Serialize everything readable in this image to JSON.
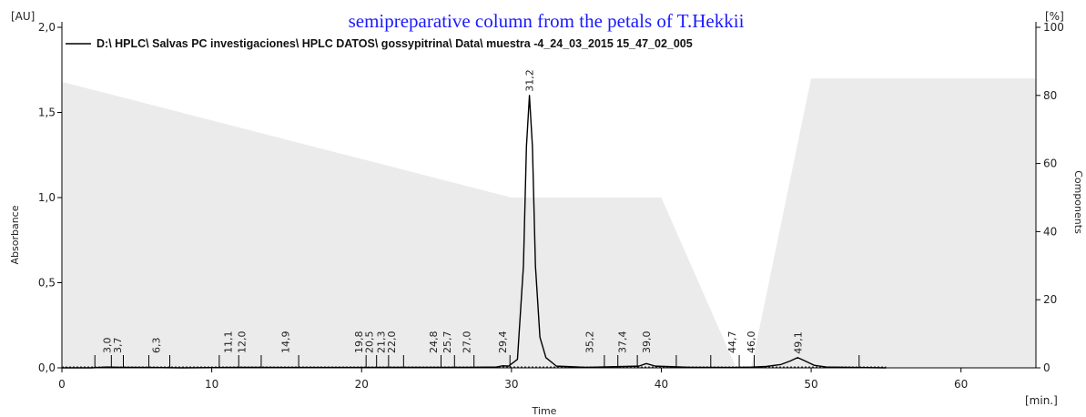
{
  "caption": "semipreparative column from the petals of T.Hekkii",
  "chart_data": {
    "type": "line",
    "title": "",
    "xlabel": "Time",
    "ylabel": "Absorbance",
    "y2label": "Components",
    "x_unit": "[min.]",
    "y_unit": "[AU]",
    "y2_unit": "[%]",
    "xlim": [
      0,
      65
    ],
    "ylim": [
      0,
      2.0
    ],
    "y2lim": [
      0,
      100
    ],
    "x_ticks": [
      0,
      10,
      20,
      30,
      40,
      50,
      60
    ],
    "x_tick_labels": [
      "0",
      "10",
      "20",
      "30",
      "40",
      "50",
      "60"
    ],
    "y_ticks": [
      0,
      0.5,
      1.0,
      1.5,
      2.0
    ],
    "y_tick_labels": [
      "0,0",
      "0,5",
      "1,0",
      "1,5",
      "2,0"
    ],
    "y2_ticks": [
      0,
      20,
      40,
      60,
      80,
      100
    ],
    "y2_tick_labels": [
      "0",
      "20",
      "40",
      "60",
      "80",
      "100"
    ],
    "grid": false,
    "legend_position": "top-left",
    "series": [
      {
        "name": "D:\\ HPLC\\ Salvas PC investigaciones\\ HPLC DATOS\\ gossypitrina\\ Data\\ muestra -4_24_03_2015 15_47_02_005",
        "color": "#000000",
        "x": [
          0,
          2,
          3,
          4,
          6,
          8,
          11,
          12,
          14.9,
          19.8,
          22,
          24.8,
          27,
          29,
          29.4,
          29.8,
          30.4,
          30.8,
          31.0,
          31.2,
          31.4,
          31.6,
          31.9,
          32.3,
          33,
          35,
          38.5,
          39.0,
          39.6,
          42,
          44.7,
          46,
          47,
          48,
          48.6,
          49.1,
          49.6,
          50.2,
          51,
          53,
          55
        ],
        "y": [
          0.0,
          0.0,
          0.005,
          0.003,
          0.002,
          0.0,
          0.002,
          0.003,
          0.002,
          0.002,
          0.003,
          0.003,
          0.003,
          0.005,
          0.012,
          0.01,
          0.05,
          0.6,
          1.3,
          1.6,
          1.3,
          0.6,
          0.18,
          0.06,
          0.01,
          0.003,
          0.01,
          0.025,
          0.01,
          0.003,
          0.002,
          0.004,
          0.008,
          0.02,
          0.04,
          0.06,
          0.04,
          0.015,
          0.005,
          0.002,
          0.0
        ]
      }
    ],
    "gradient": {
      "name": "Components",
      "color": "#ebebeb",
      "x": [
        0,
        30,
        40,
        45,
        46,
        50,
        65
      ],
      "y": [
        84,
        50,
        50,
        0,
        0,
        85,
        85
      ]
    },
    "peaks": [
      {
        "label": "3,0",
        "x": 3.0
      },
      {
        "label": "3,7",
        "x": 3.7
      },
      {
        "label": "6,3",
        "x": 6.3
      },
      {
        "label": "11,1",
        "x": 11.1
      },
      {
        "label": "12,0",
        "x": 12.0
      },
      {
        "label": "14,9",
        "x": 14.9
      },
      {
        "label": "19,8",
        "x": 19.8
      },
      {
        "label": "20,5",
        "x": 20.5
      },
      {
        "label": "21,3",
        "x": 21.3
      },
      {
        "label": "22,0",
        "x": 22.0
      },
      {
        "label": "24,8",
        "x": 24.8
      },
      {
        "label": "25,7",
        "x": 25.7
      },
      {
        "label": "27,0",
        "x": 27.0
      },
      {
        "label": "29,4",
        "x": 29.4
      },
      {
        "label": "31,2",
        "x": 31.2,
        "apex": 1.6
      },
      {
        "label": "35,2",
        "x": 35.2
      },
      {
        "label": "37,4",
        "x": 37.4
      },
      {
        "label": "39,0",
        "x": 39.0
      },
      {
        "label": "44,7",
        "x": 44.7
      },
      {
        "label": "46,0",
        "x": 46.0
      },
      {
        "label": "49,1",
        "x": 49.1,
        "apex": 0.06
      }
    ],
    "integration_marks": [
      2.2,
      3.3,
      4.1,
      5.8,
      7.2,
      10.5,
      11.8,
      13.3,
      15.8,
      20.3,
      21.0,
      21.8,
      22.8,
      25.3,
      26.2,
      27.5,
      29.9,
      36.2,
      37.1,
      38.4,
      41.0,
      43.3,
      45.2,
      46.2,
      53.2
    ]
  }
}
